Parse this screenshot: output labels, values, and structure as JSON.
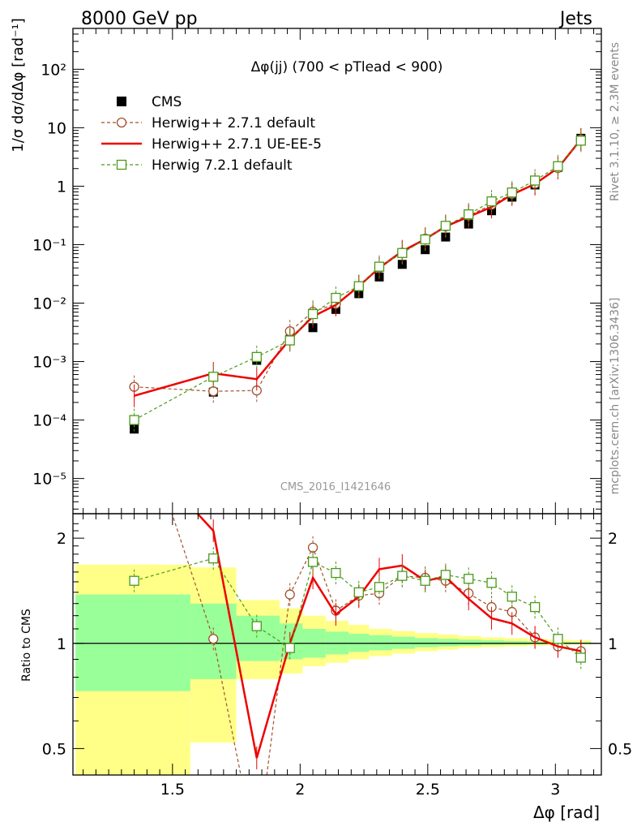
{
  "header": {
    "left": "8000 GeV pp",
    "right": "Jets"
  },
  "side_text": {
    "top": "Rivet 3.1.10, ≥ 2.3M events",
    "bottom": "mcplots.cern.ch [arXiv:1306.3436]"
  },
  "watermark": "CMS_2016_I1421646",
  "chart_data": [
    {
      "type": "scatter",
      "title": "Δφ(jj) (700 < pTlead < 900)",
      "xlabel": "Δφ [rad]",
      "ylabel": "1/σ dσ/dΔφ [rad⁻¹]",
      "yscale": "log",
      "xlim": [
        1.11,
        3.18
      ],
      "ylim": [
        2.5e-06,
        500
      ],
      "ytick_labels": [
        "10⁻⁵",
        "10⁻⁴",
        "10⁻³",
        "10⁻²",
        "10⁻¹",
        "1",
        "10",
        "10²"
      ],
      "legend": [
        "CMS",
        "Herwig++ 2.7.1 default",
        "Herwig++ 2.7.1 UE-EE-5",
        "Herwig 7.2.1 default"
      ],
      "legend_position": "top-left",
      "x": [
        1.35,
        1.66,
        1.83,
        1.96,
        2.05,
        2.14,
        2.23,
        2.31,
        2.4,
        2.49,
        2.57,
        2.66,
        2.75,
        2.83,
        2.92,
        3.01,
        3.1
      ],
      "series": [
        {
          "name": "CMS",
          "color": "#000000",
          "values": [
            7e-05,
            0.0003,
            0.00105,
            0.0024,
            0.0038,
            0.0078,
            0.0145,
            0.028,
            0.046,
            0.082,
            0.135,
            0.225,
            0.38,
            0.65,
            1.05,
            2.1,
            6.6
          ]
        },
        {
          "name": "Herwig++ 2.7.1 default",
          "color": "#a0522d",
          "values": [
            0.00037,
            0.00031,
            0.00032,
            0.0033,
            0.0071,
            0.0097,
            0.0195,
            0.04,
            0.073,
            0.127,
            0.205,
            0.315,
            0.48,
            0.74,
            1.1,
            2.05,
            6.3
          ]
        },
        {
          "name": "Herwig++ 2.7.1 UE-EE-5",
          "color": "#ee0000",
          "values": [
            0.00026,
            0.00063,
            0.0005,
            0.0024,
            0.0059,
            0.0093,
            0.0195,
            0.04,
            0.077,
            0.124,
            0.205,
            0.3,
            0.44,
            0.72,
            1.09,
            2.05,
            6.3
          ]
        },
        {
          "name": "Herwig 7.2.1 default",
          "color": "#4a9a1a",
          "values": [
            0.0001,
            0.00055,
            0.0012,
            0.0023,
            0.0065,
            0.0123,
            0.0195,
            0.042,
            0.072,
            0.123,
            0.21,
            0.33,
            0.55,
            0.78,
            1.25,
            2.2,
            6.0
          ]
        }
      ]
    },
    {
      "type": "line",
      "xlabel": "Δφ [rad]",
      "ylabel": "Ratio to CMS",
      "yscale": "log",
      "xlim": [
        1.11,
        3.18
      ],
      "ylim": [
        0.42,
        2.35
      ],
      "x_ticks": [
        1.5,
        2,
        2.5,
        3
      ],
      "x_tick_labels": [
        "1.5",
        "2",
        "2.5",
        "3"
      ],
      "y_ticks": [
        0.5,
        1,
        2
      ],
      "y_tick_labels": [
        "0.5",
        "1",
        "2"
      ],
      "reference_line": 1,
      "uncertainty_bands": {
        "bin_edges": [
          1.12,
          1.57,
          1.75,
          1.92,
          2.01,
          2.1,
          2.19,
          2.27,
          2.36,
          2.45,
          2.54,
          2.62,
          2.71,
          2.8,
          2.89,
          2.97,
          3.06,
          3.14
        ],
        "stat_lower": [
          0.73,
          0.79,
          0.89,
          0.9,
          0.91,
          0.93,
          0.945,
          0.955,
          0.965,
          0.975,
          0.98,
          0.985,
          0.99,
          0.992,
          0.994,
          0.996,
          0.997
        ],
        "stat_upper": [
          1.38,
          1.3,
          1.2,
          1.14,
          1.1,
          1.08,
          1.065,
          1.055,
          1.045,
          1.035,
          1.03,
          1.025,
          1.02,
          1.015,
          1.012,
          1.01,
          1.008
        ],
        "total_lower": [
          0.25,
          0.52,
          0.79,
          0.82,
          0.86,
          0.88,
          0.9,
          0.92,
          0.935,
          0.95,
          0.96,
          0.97,
          0.975,
          0.98,
          0.985,
          0.99,
          0.993
        ],
        "total_upper": [
          1.68,
          1.65,
          1.33,
          1.26,
          1.2,
          1.16,
          1.13,
          1.1,
          1.085,
          1.07,
          1.06,
          1.05,
          1.04,
          1.035,
          1.03,
          1.025,
          1.02
        ]
      },
      "x": [
        1.35,
        1.66,
        1.83,
        1.96,
        2.05,
        2.14,
        2.23,
        2.31,
        2.4,
        2.49,
        2.57,
        2.66,
        2.75,
        2.83,
        2.92,
        3.01,
        3.1
      ],
      "series": [
        {
          "name": "Herwig++ 2.7.1 default",
          "color": "#a0522d",
          "values": [
            5.0,
            1.03,
            0.25,
            1.38,
            1.88,
            1.24,
            1.37,
            1.39,
            1.56,
            1.54,
            1.51,
            1.39,
            1.27,
            1.23,
            1.04,
            0.98,
            0.95
          ]
        },
        {
          "name": "Herwig++ 2.7.1 UE-EE-5",
          "color": "#ee0000",
          "values": [
            3.7,
            2.1,
            0.47,
            1.0,
            1.54,
            1.21,
            1.36,
            1.63,
            1.67,
            1.51,
            1.55,
            1.34,
            1.18,
            1.14,
            1.04,
            0.98,
            0.95
          ]
        },
        {
          "name": "Herwig 7.2.1 default",
          "color": "#4a9a1a",
          "values": [
            1.51,
            1.75,
            1.12,
            0.97,
            1.71,
            1.59,
            1.4,
            1.45,
            1.56,
            1.51,
            1.57,
            1.53,
            1.49,
            1.36,
            1.27,
            1.03,
            0.91
          ]
        }
      ]
    }
  ]
}
